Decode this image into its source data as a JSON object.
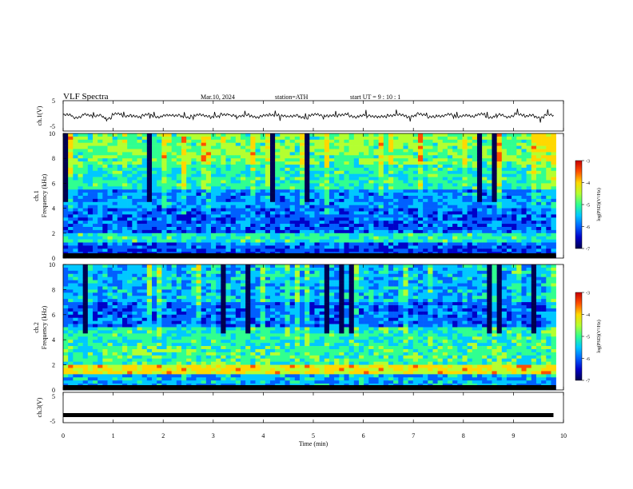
{
  "header": {
    "title": "VLF  Spectra",
    "date": "Mar.10, 2024",
    "station": "station=ATH",
    "start": "start  UT  =    9  : 10 : 1"
  },
  "chart_data": [
    {
      "type": "line",
      "panel": "ch1-waveform",
      "ylabel": "ch.1(V)",
      "ylim": [
        -5,
        5
      ],
      "yticks": [
        "5",
        "-5"
      ],
      "x_range_min": [
        0,
        9.8
      ],
      "description_values": "noisy waveform near 0 V",
      "values": [
        0.2,
        -0.4,
        0.3,
        0.0,
        -0.6,
        0.5,
        0.1,
        -0.3,
        0.4,
        -0.2,
        0.0,
        0.3,
        -0.5,
        0.2,
        0.1,
        -0.4,
        0.6,
        -0.1,
        0.2,
        -0.3,
        0.0,
        0.4,
        -0.2,
        0.1,
        -0.6,
        0.3,
        0.2,
        -0.1,
        0.5,
        -0.3,
        0.1,
        0.0,
        -0.4,
        0.3,
        0.2,
        -0.2,
        0.6,
        -0.5,
        0.1,
        0.3,
        -0.1,
        0.0,
        0.4,
        -0.3,
        0.2,
        -0.2,
        0.5,
        0.0,
        -0.4,
        0.2
      ]
    },
    {
      "type": "heatmap",
      "panel": "ch1-spectrogram",
      "ylabel": "ch.1",
      "ylabel2": "Frequency  (kHz)",
      "ylim": [
        0,
        10
      ],
      "yticks": [
        "0",
        "2",
        "4",
        "6",
        "8",
        "10"
      ],
      "colorbar": {
        "label": "log(PSD)(V²/Hz)",
        "range": [
          -7,
          -3
        ],
        "ticks": [
          "-3",
          "-4",
          "-5",
          "-6",
          "-7"
        ]
      }
    },
    {
      "type": "heatmap",
      "panel": "ch2-spectrogram",
      "ylabel": "ch.2",
      "ylabel2": "Frequency  (kHz)",
      "ylim": [
        0,
        10
      ],
      "yticks": [
        "0",
        "2",
        "4",
        "6",
        "8",
        "10"
      ],
      "colorbar": {
        "label": "log(PSD)(V²/Hz)",
        "range": [
          -7,
          -3
        ],
        "ticks": [
          "-3",
          "-4",
          "-5",
          "-6",
          "-7"
        ]
      }
    },
    {
      "type": "line",
      "panel": "ch3-waveform",
      "ylabel": "ch.3(V)",
      "ylim": [
        -5,
        5
      ],
      "yticks": [
        "5",
        "-5"
      ],
      "x_range_min": [
        0,
        9.8
      ],
      "values": [
        -2.5,
        -2.5
      ]
    }
  ],
  "xaxis": {
    "xlabel": "Time  (min)",
    "xlim": [
      0,
      10
    ],
    "ticks": [
      "0",
      "1",
      "2",
      "3",
      "4",
      "5",
      "6",
      "7",
      "8",
      "9",
      "10"
    ]
  },
  "colors": {
    "spectrogram_scale": [
      "#000050",
      "#0000c8",
      "#0060ff",
      "#00c8ff",
      "#30ff90",
      "#b4ff30",
      "#ffd800",
      "#ff5000",
      "#c80000"
    ]
  }
}
